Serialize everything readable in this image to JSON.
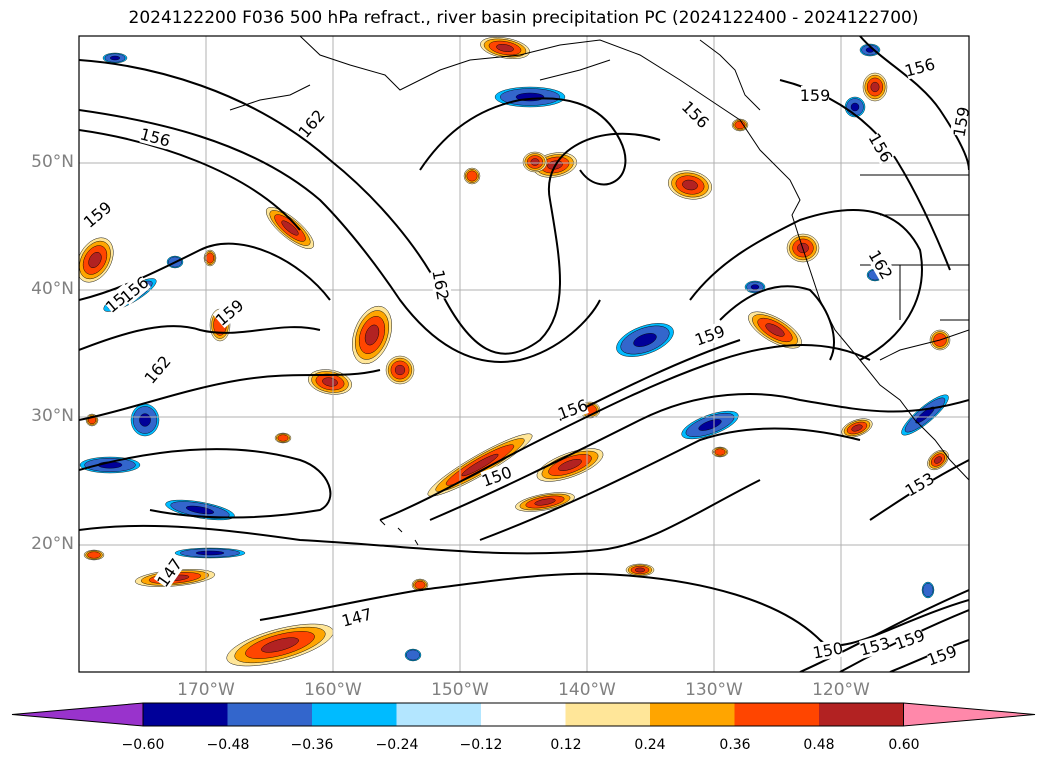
{
  "title": "2024122200 F036 500 hPa refract., river basin precipitation PC (2024122400 - 2024122700)",
  "map": {
    "lat_labels": [
      "50°N",
      "40°N",
      "30°N",
      "20°N"
    ],
    "lon_labels": [
      "170°W",
      "160°W",
      "150°W",
      "140°W",
      "130°W",
      "120°W"
    ],
    "contour_labels": [
      "156",
      "162",
      "159",
      "162",
      "156",
      "159",
      "156",
      "159",
      "153",
      "156",
      "162",
      "159",
      "162",
      "159",
      "156",
      "150",
      "153",
      "150",
      "153",
      "159",
      "159",
      "147",
      "147",
      "156"
    ]
  },
  "colorbar": {
    "ticks": [
      "−0.60",
      "−0.48",
      "−0.36",
      "−0.24",
      "−0.12",
      "0.12",
      "0.24",
      "0.36",
      "0.48",
      "0.60"
    ],
    "colors": [
      "#9933cc",
      "#000099",
      "#3366cc",
      "#00bbff",
      "#b3e6ff",
      "#ffffff",
      "#ffe699",
      "#ffa500",
      "#ff4500",
      "#b22222",
      "#ff88aa"
    ]
  },
  "colors": {
    "blue_dark": "#000099",
    "blue_mid": "#3366cc",
    "cyan": "#00bbff",
    "orange_light": "#ffe699",
    "orange": "#ffa500",
    "red_orange": "#ff4500",
    "dark_red": "#b22222",
    "pink": "#ff88aa"
  }
}
